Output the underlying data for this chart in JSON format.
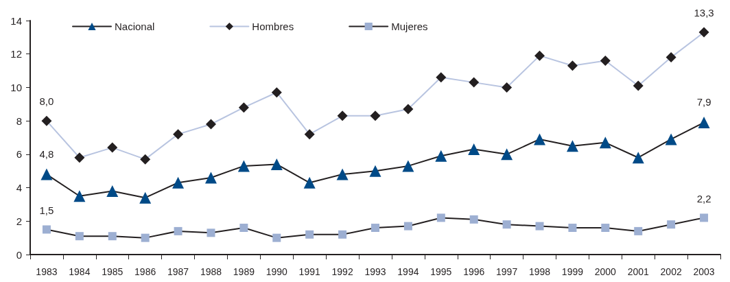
{
  "chart_data": {
    "type": "line",
    "categories": [
      "1983",
      "1984",
      "1985",
      "1986",
      "1987",
      "1988",
      "1989",
      "1990",
      "1991",
      "1992",
      "1993",
      "1994",
      "1995",
      "1996",
      "1997",
      "1998",
      "1999",
      "2000",
      "2001",
      "2002",
      "2003"
    ],
    "series": [
      {
        "name": "Nacional",
        "color": "#004a87",
        "marker": "triangle",
        "values": [
          4.8,
          3.5,
          3.8,
          3.4,
          4.3,
          4.6,
          5.3,
          5.4,
          4.3,
          4.8,
          5.0,
          5.3,
          5.9,
          6.3,
          6.0,
          6.9,
          6.5,
          6.7,
          5.8,
          6.9,
          7.9
        ],
        "value_labels": [
          "4,8",
          null,
          null,
          null,
          null,
          null,
          null,
          null,
          null,
          null,
          null,
          null,
          null,
          null,
          null,
          null,
          null,
          null,
          null,
          null,
          "7,9"
        ]
      },
      {
        "name": "Hombres",
        "color": "#231f20",
        "marker": "diamond",
        "values": [
          8.0,
          5.8,
          6.4,
          5.7,
          7.2,
          7.8,
          8.8,
          9.7,
          7.2,
          8.3,
          8.3,
          8.7,
          10.6,
          10.3,
          10.0,
          11.9,
          11.3,
          11.6,
          10.1,
          11.8,
          13.3
        ],
        "value_labels": [
          "8,0",
          null,
          null,
          null,
          null,
          null,
          null,
          null,
          null,
          null,
          null,
          null,
          null,
          null,
          null,
          null,
          null,
          null,
          null,
          null,
          "13,3"
        ]
      },
      {
        "name": "Mujeres",
        "color": "#9dafd2",
        "marker": "square",
        "values": [
          1.5,
          1.1,
          1.1,
          1.0,
          1.4,
          1.3,
          1.6,
          1.0,
          1.2,
          1.2,
          1.6,
          1.7,
          2.2,
          2.1,
          1.8,
          1.7,
          1.6,
          1.6,
          1.4,
          1.8,
          2.2
        ],
        "value_labels": [
          "1,5",
          null,
          null,
          null,
          null,
          null,
          null,
          null,
          null,
          null,
          null,
          null,
          null,
          null,
          null,
          null,
          null,
          null,
          null,
          null,
          "2,2"
        ]
      }
    ],
    "ylim": [
      0,
      14
    ],
    "yticks": [
      0,
      2,
      4,
      6,
      8,
      10,
      12,
      14
    ],
    "grid": false,
    "legend": "top left"
  }
}
